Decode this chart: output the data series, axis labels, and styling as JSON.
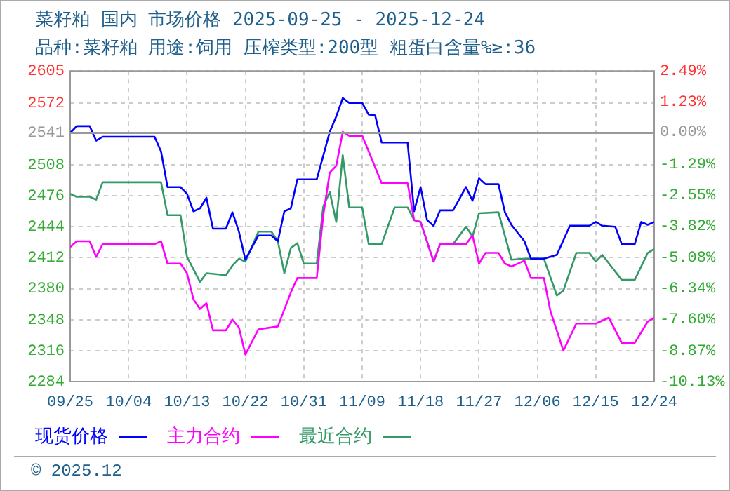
{
  "chart_data": {
    "type": "line",
    "title": "菜籽粕 国内 市场价格 2025-09-25 - 2025-12-24",
    "subtitle": "品种:菜籽粕 用途:饲用 压榨类型:200型 粗蛋白含量%≥:36",
    "annotations": [
      "© 2025.12"
    ],
    "xlim": [
      "2025-09-25",
      "2025-12-24"
    ],
    "xticks": [
      {
        "value": "2025-09-25",
        "label": "09/25"
      },
      {
        "value": "2025-10-04",
        "label": "10/04"
      },
      {
        "value": "2025-10-13",
        "label": "10/13"
      },
      {
        "value": "2025-10-22",
        "label": "10/22"
      },
      {
        "value": "2025-10-31",
        "label": "10/31"
      },
      {
        "value": "2025-11-09",
        "label": "11/09"
      },
      {
        "value": "2025-11-18",
        "label": "11/18"
      },
      {
        "value": "2025-11-27",
        "label": "11/27"
      },
      {
        "value": "2025-12-06",
        "label": "12/06"
      },
      {
        "value": "2025-12-15",
        "label": "12/15"
      },
      {
        "value": "2025-12-24",
        "label": "12/24"
      }
    ],
    "ylim": [
      2284,
      2605
    ],
    "yticks": [
      2284,
      2316,
      2348,
      2380,
      2412,
      2444,
      2476,
      2508,
      2541,
      2572,
      2605
    ],
    "y2lim": [
      -10.13,
      2.49
    ],
    "y2ticks": [
      {
        "value": -10.13,
        "label": "-10.13%"
      },
      {
        "value": -8.87,
        "label": "-8.87%"
      },
      {
        "value": -7.6,
        "label": "-7.60%"
      },
      {
        "value": -6.34,
        "label": "-6.34%"
      },
      {
        "value": -5.08,
        "label": "-5.08%"
      },
      {
        "value": -3.82,
        "label": "-3.82%"
      },
      {
        "value": -2.55,
        "label": "-2.55%"
      },
      {
        "value": -1.29,
        "label": "-1.29%"
      },
      {
        "value": 0,
        "label": "0.00%"
      },
      {
        "value": 1.23,
        "label": "1.23%"
      },
      {
        "value": 2.49,
        "label": "2.49%"
      }
    ],
    "ref_lines": [
      {
        "axis": "y",
        "value": 2541,
        "color": "#999999"
      }
    ],
    "grid": true,
    "legend": "bottom",
    "marker": "none",
    "line_style": "solid",
    "series": [
      {
        "name": "现货价格",
        "color": "#0000ff",
        "x": [
          "2025-09-25",
          "2025-09-26",
          "2025-09-28",
          "2025-09-29",
          "2025-09-30",
          "2025-10-08",
          "2025-10-09",
          "2025-10-10",
          "2025-10-12",
          "2025-10-13",
          "2025-10-14",
          "2025-10-15",
          "2025-10-16",
          "2025-10-17",
          "2025-10-19",
          "2025-10-20",
          "2025-10-21",
          "2025-10-22",
          "2025-10-24",
          "2025-10-26",
          "2025-10-27",
          "2025-10-28",
          "2025-10-29",
          "2025-10-30",
          "2025-11-02",
          "2025-11-04",
          "2025-11-05",
          "2025-11-06",
          "2025-11-07",
          "2025-11-09",
          "2025-11-10",
          "2025-11-11",
          "2025-11-12",
          "2025-11-16",
          "2025-11-17",
          "2025-11-18",
          "2025-11-19",
          "2025-11-20",
          "2025-11-21",
          "2025-11-23",
          "2025-11-25",
          "2025-11-26",
          "2025-11-27",
          "2025-11-28",
          "2025-11-30",
          "2025-12-01",
          "2025-12-02",
          "2025-12-04",
          "2025-12-05",
          "2025-12-07",
          "2025-12-09",
          "2025-12-11",
          "2025-12-14",
          "2025-12-15",
          "2025-12-16",
          "2025-12-18",
          "2025-12-19",
          "2025-12-21",
          "2025-12-22",
          "2025-12-23",
          "2025-12-24"
        ],
        "values": [
          2541,
          2548,
          2548,
          2533,
          2537,
          2537,
          2522,
          2485,
          2485,
          2478,
          2460,
          2463,
          2474,
          2442,
          2442,
          2459,
          2439,
          2410,
          2435,
          2435,
          2429,
          2460,
          2463,
          2493,
          2493,
          2542,
          2558,
          2577,
          2572,
          2572,
          2560,
          2559,
          2531,
          2531,
          2460,
          2485,
          2451,
          2445,
          2461,
          2461,
          2485,
          2471,
          2494,
          2488,
          2488,
          2459,
          2446,
          2429,
          2411,
          2411,
          2415,
          2445,
          2445,
          2449,
          2445,
          2444,
          2426,
          2426,
          2449,
          2446,
          2449
        ]
      },
      {
        "name": "主力合约",
        "color": "#ff00ff",
        "x": [
          "2025-09-25",
          "2025-09-26",
          "2025-09-28",
          "2025-09-29",
          "2025-09-30",
          "2025-10-08",
          "2025-10-09",
          "2025-10-10",
          "2025-10-12",
          "2025-10-13",
          "2025-10-14",
          "2025-10-15",
          "2025-10-16",
          "2025-10-17",
          "2025-10-19",
          "2025-10-20",
          "2025-10-21",
          "2025-10-22",
          "2025-10-24",
          "2025-10-27",
          "2025-10-29",
          "2025-10-30",
          "2025-11-02",
          "2025-11-03",
          "2025-11-04",
          "2025-11-05",
          "2025-11-06",
          "2025-11-07",
          "2025-11-09",
          "2025-11-10",
          "2025-11-12",
          "2025-11-16",
          "2025-11-17",
          "2025-11-18",
          "2025-11-20",
          "2025-11-21",
          "2025-11-25",
          "2025-11-26",
          "2025-11-27",
          "2025-11-28",
          "2025-11-30",
          "2025-12-01",
          "2025-12-02",
          "2025-12-04",
          "2025-12-05",
          "2025-12-07",
          "2025-12-08",
          "2025-12-10",
          "2025-12-12",
          "2025-12-15",
          "2025-12-17",
          "2025-12-19",
          "2025-12-21",
          "2025-12-23",
          "2025-12-24"
        ],
        "values": [
          2423,
          2429,
          2429,
          2413,
          2426,
          2426,
          2429,
          2406,
          2406,
          2396,
          2369,
          2359,
          2365,
          2337,
          2337,
          2348,
          2340,
          2312,
          2338,
          2341,
          2376,
          2391,
          2391,
          2456,
          2500,
          2507,
          2542,
          2538,
          2538,
          2522,
          2489,
          2489,
          2451,
          2449,
          2408,
          2426,
          2426,
          2435,
          2406,
          2417,
          2417,
          2406,
          2403,
          2409,
          2391,
          2391,
          2357,
          2316,
          2344,
          2344,
          2350,
          2324,
          2324,
          2346,
          2350
        ]
      },
      {
        "name": "最近合约",
        "color": "#339966",
        "x": [
          "2025-09-25",
          "2025-09-26",
          "2025-09-28",
          "2025-09-29",
          "2025-09-30",
          "2025-10-09",
          "2025-10-10",
          "2025-10-12",
          "2025-10-13",
          "2025-10-15",
          "2025-10-16",
          "2025-10-19",
          "2025-10-20",
          "2025-10-21",
          "2025-10-22",
          "2025-10-24",
          "2025-10-26",
          "2025-10-27",
          "2025-10-28",
          "2025-10-29",
          "2025-10-30",
          "2025-10-31",
          "2025-11-02",
          "2025-11-03",
          "2025-11-04",
          "2025-11-05",
          "2025-11-06",
          "2025-11-07",
          "2025-11-09",
          "2025-11-10",
          "2025-11-12",
          "2025-11-14",
          "2025-11-16",
          "2025-11-17",
          "2025-11-18",
          "2025-11-20",
          "2025-11-21",
          "2025-11-23",
          "2025-11-25",
          "2025-11-26",
          "2025-11-27",
          "2025-11-30",
          "2025-12-02",
          "2025-12-04",
          "2025-12-07",
          "2025-12-09",
          "2025-12-10",
          "2025-12-12",
          "2025-12-14",
          "2025-12-15",
          "2025-12-16",
          "2025-12-19",
          "2025-12-21",
          "2025-12-23",
          "2025-12-24"
        ],
        "values": [
          2478,
          2475,
          2475,
          2472,
          2490,
          2490,
          2456,
          2456,
          2413,
          2387,
          2396,
          2394,
          2404,
          2411,
          2408,
          2439,
          2439,
          2429,
          2396,
          2422,
          2427,
          2406,
          2406,
          2465,
          2480,
          2449,
          2518,
          2464,
          2464,
          2426,
          2426,
          2464,
          2464,
          2451,
          2449,
          2408,
          2426,
          2426,
          2444,
          2434,
          2458,
          2459,
          2410,
          2411,
          2411,
          2373,
          2378,
          2417,
          2417,
          2408,
          2415,
          2389,
          2389,
          2417,
          2421
        ]
      }
    ]
  }
}
